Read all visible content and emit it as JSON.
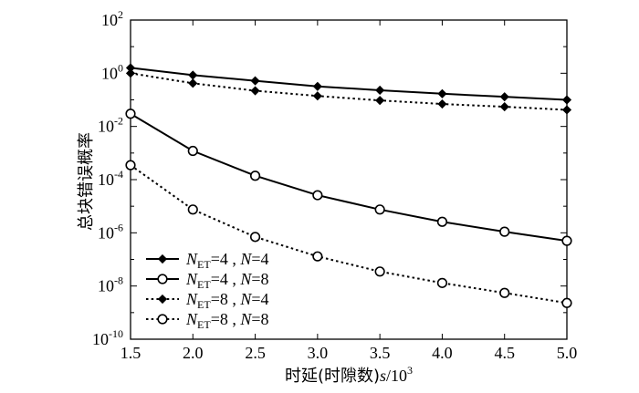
{
  "chart_data": {
    "type": "line",
    "title": "",
    "xlabel": {
      "prefix": "时延(时隙数)",
      "var": "s",
      "base": "/10",
      "exp": "3"
    },
    "ylabel": "总块错误概率",
    "x": [
      1.5,
      2.0,
      2.5,
      3.0,
      3.5,
      4.0,
      4.5,
      5.0
    ],
    "xlim": [
      1.5,
      5.0
    ],
    "xticks": [
      "1.5",
      "2.0",
      "2.5",
      "3.0",
      "3.5",
      "4.0",
      "4.5",
      "5.0"
    ],
    "ylim": [
      1e-10,
      100
    ],
    "yscale": "log",
    "yticks": [
      {
        "base": "10",
        "exp": "2"
      },
      {
        "base": "10",
        "exp": "0"
      },
      {
        "base": "10",
        "exp": "-2"
      },
      {
        "base": "10",
        "exp": "-4"
      },
      {
        "base": "10",
        "exp": "-6"
      },
      {
        "base": "10",
        "exp": "-8"
      },
      {
        "base": "10",
        "exp": "-10"
      }
    ],
    "grid": false,
    "legend_position": "bottom-left",
    "series": [
      {
        "name": "N_ET=4, N=4",
        "label": {
          "v1": "N",
          "s1": "ET",
          "r1": "=4 , ",
          "v2": "N",
          "r2": "=4"
        },
        "line": "solid",
        "marker": "diamond",
        "values": [
          1.6,
          0.85,
          0.52,
          0.32,
          0.23,
          0.17,
          0.13,
          0.1
        ]
      },
      {
        "name": "N_ET=4, N=8",
        "label": {
          "v1": "N",
          "s1": "ET",
          "r1": "=4 , ",
          "v2": "N",
          "r2": "=8"
        },
        "line": "solid",
        "marker": "circle",
        "values": [
          0.03,
          0.0012,
          0.00014,
          2.6e-05,
          7.5e-06,
          2.6e-06,
          1.1e-06,
          5e-07
        ]
      },
      {
        "name": "N_ET=8, N=4",
        "label": {
          "v1": "N",
          "s1": "ET",
          "r1": "=8 , ",
          "v2": "N",
          "r2": "=4"
        },
        "line": "dotted",
        "marker": "diamond",
        "values": [
          1.0,
          0.42,
          0.22,
          0.14,
          0.095,
          0.07,
          0.055,
          0.042
        ]
      },
      {
        "name": "N_ET=8, N=8",
        "label": {
          "v1": "N",
          "s1": "ET",
          "r1": "=8 , ",
          "v2": "N",
          "r2": "=8"
        },
        "line": "dotted",
        "marker": "circle",
        "values": [
          0.00035,
          7.5e-06,
          7e-07,
          1.3e-07,
          3.5e-08,
          1.3e-08,
          5.5e-09,
          2.3e-09
        ]
      }
    ]
  }
}
